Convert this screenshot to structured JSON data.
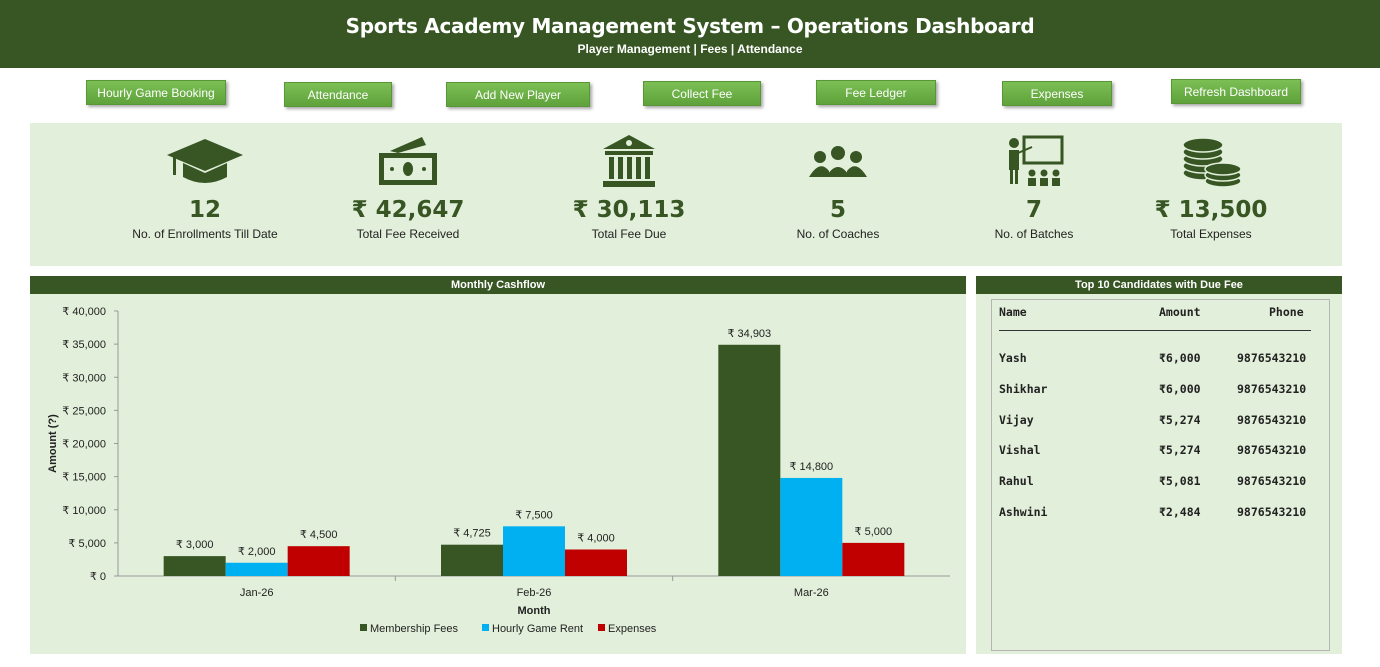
{
  "header": {
    "title": "Sports Academy Management System – Operations Dashboard",
    "subtitle": "Player Management | Fees | Attendance"
  },
  "buttons": [
    "Hourly Game Booking",
    "Attendance",
    "Add New Player",
    "Collect Fee",
    "Fee Ledger",
    "Expenses",
    "Refresh Dashboard"
  ],
  "kpis": [
    {
      "icon": "graduation-cap-icon",
      "value": "12",
      "label": "No. of Enrollments Till Date"
    },
    {
      "icon": "money-icon",
      "value": "₹ 42,647",
      "label": "Total Fee Received"
    },
    {
      "icon": "bank-icon",
      "value": "₹ 30,113",
      "label": "Total Fee Due"
    },
    {
      "icon": "group-icon",
      "value": "5",
      "label": "No. of Coaches"
    },
    {
      "icon": "teacher-class-icon",
      "value": "7",
      "label": "No. of Batches"
    },
    {
      "icon": "coins-icon",
      "value": "₹ 13,500",
      "label": "Total Expenses"
    }
  ],
  "colors": {
    "primary": "#375623",
    "panel": "#e2efda",
    "membership": "#375623",
    "hourly": "#00b0f0",
    "expenses": "#c00000"
  },
  "chart_data": {
    "type": "bar",
    "title": "Monthly Cashflow",
    "xlabel": "Month",
    "ylabel": "Amount (?)",
    "categories": [
      "Jan-26",
      "Feb-26",
      "Mar-26"
    ],
    "ylim": [
      0,
      40000
    ],
    "yticks": [
      "₹ 0",
      "₹ 5,000",
      "₹ 10,000",
      "₹ 15,000",
      "₹ 20,000",
      "₹ 25,000",
      "₹ 30,000",
      "₹ 35,000",
      "₹ 40,000"
    ],
    "series": [
      {
        "name": "Membership Fees",
        "color": "#375623",
        "values": [
          3000,
          4725,
          34903
        ],
        "labels": [
          "₹ 3,000",
          "₹ 4,725",
          "₹ 34,903"
        ]
      },
      {
        "name": "Hourly Game Rent",
        "color": "#00b0f0",
        "values": [
          2000,
          7500,
          14800
        ],
        "labels": [
          "₹ 2,000",
          "₹ 7,500",
          "₹ 14,800"
        ]
      },
      {
        "name": "Expenses",
        "color": "#c00000",
        "values": [
          4500,
          4000,
          5000
        ],
        "labels": [
          "₹ 4,500",
          "₹ 4,000",
          "₹ 5,000"
        ]
      }
    ],
    "legend": "bottom",
    "grid": false
  },
  "due_table": {
    "title": "Top 10 Candidates with Due Fee",
    "headers": [
      "Name",
      "Amount",
      "Phone"
    ],
    "rows": [
      [
        "Yash",
        "₹6,000",
        "9876543210"
      ],
      [
        "Shikhar",
        "₹6,000",
        "9876543210"
      ],
      [
        "Vijay",
        "₹5,274",
        "9876543210"
      ],
      [
        "Vishal",
        "₹5,274",
        "9876543210"
      ],
      [
        "Rahul",
        "₹5,081",
        "9876543210"
      ],
      [
        "Ashwini",
        "₹2,484",
        "9876543210"
      ]
    ]
  }
}
